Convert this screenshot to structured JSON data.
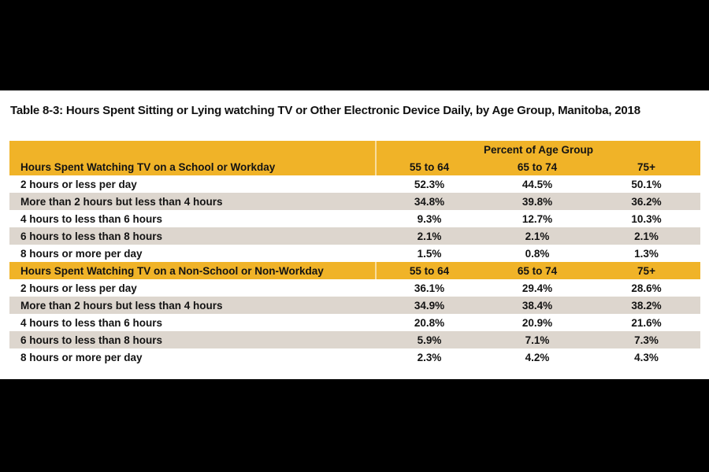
{
  "title": "Table 8-3: Hours Spent Sitting or Lying watching TV or Other Electronic Device Daily, by Age Group, Manitoba, 2018",
  "table": {
    "band_header": "Percent of Age Group",
    "age_headers": [
      "55 to 64",
      "65 to 74",
      "75+"
    ],
    "sections": [
      {
        "header": "Hours Spent Watching TV on a School or Workday",
        "rows": [
          {
            "label": "2 hours or less per day",
            "values": [
              "52.3%",
              "44.5%",
              "50.1%"
            ]
          },
          {
            "label": "More than 2 hours but less than 4 hours",
            "values": [
              "34.8%",
              "39.8%",
              "36.2%"
            ]
          },
          {
            "label": "4 hours to less than 6 hours",
            "values": [
              "9.3%",
              "12.7%",
              "10.3%"
            ]
          },
          {
            "label": "6 hours to less than 8 hours",
            "values": [
              "2.1%",
              "2.1%",
              "2.1%"
            ]
          },
          {
            "label": "8 hours or more per day",
            "values": [
              "1.5%",
              "0.8%",
              "1.3%"
            ]
          }
        ]
      },
      {
        "header": "Hours Spent Watching TV on a Non-School or Non-Workday",
        "rows": [
          {
            "label": "2 hours or less per day",
            "values": [
              "36.1%",
              "29.4%",
              "28.6%"
            ]
          },
          {
            "label": "More than 2 hours but less than 4 hours",
            "values": [
              "34.9%",
              "38.4%",
              "38.2%"
            ]
          },
          {
            "label": "4 hours to less than 6 hours",
            "values": [
              "20.8%",
              "20.9%",
              "21.6%"
            ]
          },
          {
            "label": "6 hours to less than 8 hours",
            "values": [
              "5.9%",
              "7.1%",
              "7.3%"
            ]
          },
          {
            "label": "8 hours or more per day",
            "values": [
              "2.3%",
              "4.2%",
              "4.3%"
            ]
          }
        ]
      }
    ]
  },
  "chart_data": {
    "type": "table",
    "title": "Table 8-3: Hours Spent Sitting or Lying watching TV or Other Electronic Device Daily, by Age Group, Manitoba, 2018",
    "columns": [
      "55 to 64",
      "65 to 74",
      "75+"
    ],
    "units": "Percent of Age Group",
    "sections": [
      {
        "name": "Hours Spent Watching TV on a School or Workday",
        "categories": [
          "2 hours or less per day",
          "More than 2 hours but less than 4 hours",
          "4 hours to less than 6 hours",
          "6 hours to less than 8 hours",
          "8 hours or more per day"
        ],
        "series": [
          {
            "name": "55 to 64",
            "values": [
              52.3,
              34.8,
              9.3,
              2.1,
              1.5
            ]
          },
          {
            "name": "65 to 74",
            "values": [
              44.5,
              39.8,
              12.7,
              2.1,
              0.8
            ]
          },
          {
            "name": "75+",
            "values": [
              50.1,
              36.2,
              10.3,
              2.1,
              1.3
            ]
          }
        ]
      },
      {
        "name": "Hours Spent Watching TV on a Non-School or Non-Workday",
        "categories": [
          "2 hours or less per day",
          "More than 2 hours but less than 4 hours",
          "4 hours to less than 6 hours",
          "6 hours to less than 8 hours",
          "8 hours or more per day"
        ],
        "series": [
          {
            "name": "55 to 64",
            "values": [
              36.1,
              34.9,
              20.8,
              5.9,
              2.3
            ]
          },
          {
            "name": "65 to 74",
            "values": [
              29.4,
              38.4,
              20.9,
              7.1,
              4.2
            ]
          },
          {
            "name": "75+",
            "values": [
              28.6,
              38.2,
              21.6,
              7.3,
              4.3
            ]
          }
        ]
      }
    ]
  },
  "colors": {
    "header_gold": "#f0b328",
    "row_beige": "#ddd6ce",
    "row_white": "#ffffff",
    "text": "#131313",
    "letterbox": "#000000"
  }
}
